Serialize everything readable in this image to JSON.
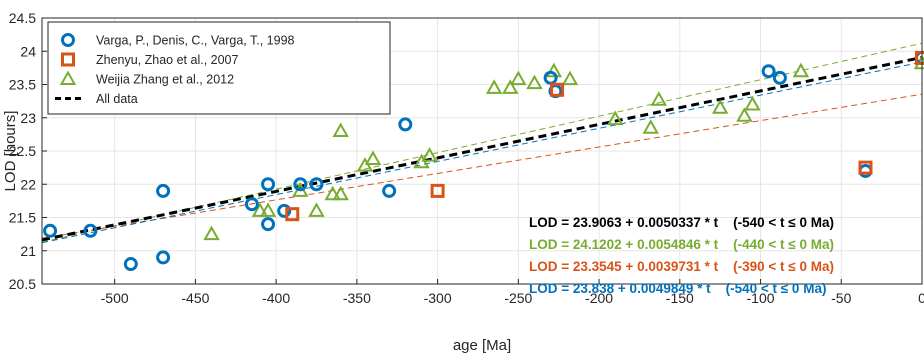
{
  "chart_data": {
    "type": "scatter",
    "xlabel": "age [Ma]",
    "ylabel": "LOD [hours]",
    "xlim": [
      -545,
      0
    ],
    "ylim": [
      20.5,
      24.5
    ],
    "xticks": [
      -500,
      -450,
      -400,
      -350,
      -300,
      -250,
      -200,
      -150,
      -100,
      -50,
      0
    ],
    "yticks": [
      20.5,
      21,
      21.5,
      22,
      22.5,
      23,
      23.5,
      24,
      24.5
    ],
    "grid": true,
    "legend_position": "top-left",
    "colors": {
      "varga": "#0072bd",
      "zhao": "#d95319",
      "zhang": "#77ac30",
      "all": "#000000"
    },
    "series": [
      {
        "name": "Varga, P., Denis, C., Varga, T., 1998",
        "marker": "circle",
        "color": "#0072bd",
        "points": [
          [
            -540,
            21.3
          ],
          [
            -515,
            21.3
          ],
          [
            -490,
            20.8
          ],
          [
            -470,
            21.9
          ],
          [
            -470,
            20.9
          ],
          [
            -415,
            21.7
          ],
          [
            -405,
            22.0
          ],
          [
            -405,
            21.4
          ],
          [
            -395,
            21.6
          ],
          [
            -385,
            22.0
          ],
          [
            -375,
            22.0
          ],
          [
            -330,
            21.9
          ],
          [
            -320,
            22.9
          ],
          [
            -230,
            23.6
          ],
          [
            -227,
            23.4
          ],
          [
            -95,
            23.7
          ],
          [
            -88,
            23.6
          ],
          [
            -35,
            22.2
          ],
          [
            0,
            23.9
          ]
        ]
      },
      {
        "name": "Zhenyu, Zhao et al., 2007",
        "marker": "square",
        "color": "#d95319",
        "points": [
          [
            -390,
            21.55
          ],
          [
            -300,
            21.9
          ],
          [
            -226,
            23.42
          ],
          [
            -35,
            22.25
          ],
          [
            0,
            23.9
          ]
        ]
      },
      {
        "name": "Weijia Zhang et al., 2012",
        "marker": "triangle",
        "color": "#77ac30",
        "points": [
          [
            -440,
            21.25
          ],
          [
            -410,
            21.6
          ],
          [
            -405,
            21.6
          ],
          [
            -385,
            21.9
          ],
          [
            -375,
            21.6
          ],
          [
            -365,
            21.85
          ],
          [
            -360,
            21.85
          ],
          [
            -360,
            22.8
          ],
          [
            -345,
            22.28
          ],
          [
            -340,
            22.38
          ],
          [
            -310,
            22.33
          ],
          [
            -305,
            22.43
          ],
          [
            -265,
            23.45
          ],
          [
            -255,
            23.45
          ],
          [
            -250,
            23.58
          ],
          [
            -240,
            23.52
          ],
          [
            -228,
            23.7
          ],
          [
            -218,
            23.58
          ],
          [
            -190,
            22.98
          ],
          [
            -168,
            22.85
          ],
          [
            -163,
            23.27
          ],
          [
            -125,
            23.15
          ],
          [
            -110,
            23.03
          ],
          [
            -105,
            23.2
          ],
          [
            -75,
            23.7
          ],
          [
            0,
            23.82
          ]
        ]
      }
    ],
    "fits": [
      {
        "name": "All data",
        "color": "#000000",
        "intercept": 23.9063,
        "slope": 0.0050337,
        "range": [
          -540,
          0
        ],
        "dashed": true,
        "bold": true,
        "equation": "LOD = 23.9063 + 0.0050337 * t    (-540 < t ≤ 0 Ma)"
      },
      {
        "name": "Weijia Zhang",
        "color": "#77ac30",
        "intercept": 24.1202,
        "slope": 0.0054846,
        "range": [
          -440,
          0
        ],
        "dashed": true,
        "bold": false,
        "equation": "LOD = 24.1202 + 0.0054846 * t    (-440 < t ≤ 0 Ma)"
      },
      {
        "name": "Zhenyu Zhao",
        "color": "#d95319",
        "intercept": 23.3545,
        "slope": 0.0039731,
        "range": [
          -390,
          0
        ],
        "dashed": true,
        "bold": false,
        "equation": "LOD = 23.3545 + 0.0039731 * t    (-390 < t ≤ 0 Ma)"
      },
      {
        "name": "Varga",
        "color": "#0072bd",
        "intercept": 23.838,
        "slope": 0.0049849,
        "range": [
          -540,
          0
        ],
        "dashed": true,
        "bold": false,
        "equation": "LOD = 23.838 + 0.0049849 * t    (-540 < t ≤ 0 Ma)"
      }
    ],
    "legend": [
      {
        "label": "Varga, P., Denis, C., Varga, T., 1998",
        "marker": "circle",
        "color": "#0072bd"
      },
      {
        "label": "Zhenyu, Zhao et al., 2007",
        "marker": "square",
        "color": "#d95319"
      },
      {
        "label": "Weijia Zhang et al., 2012",
        "marker": "triangle",
        "color": "#77ac30"
      },
      {
        "label": "All data",
        "marker": "dash",
        "color": "#000000"
      }
    ]
  }
}
